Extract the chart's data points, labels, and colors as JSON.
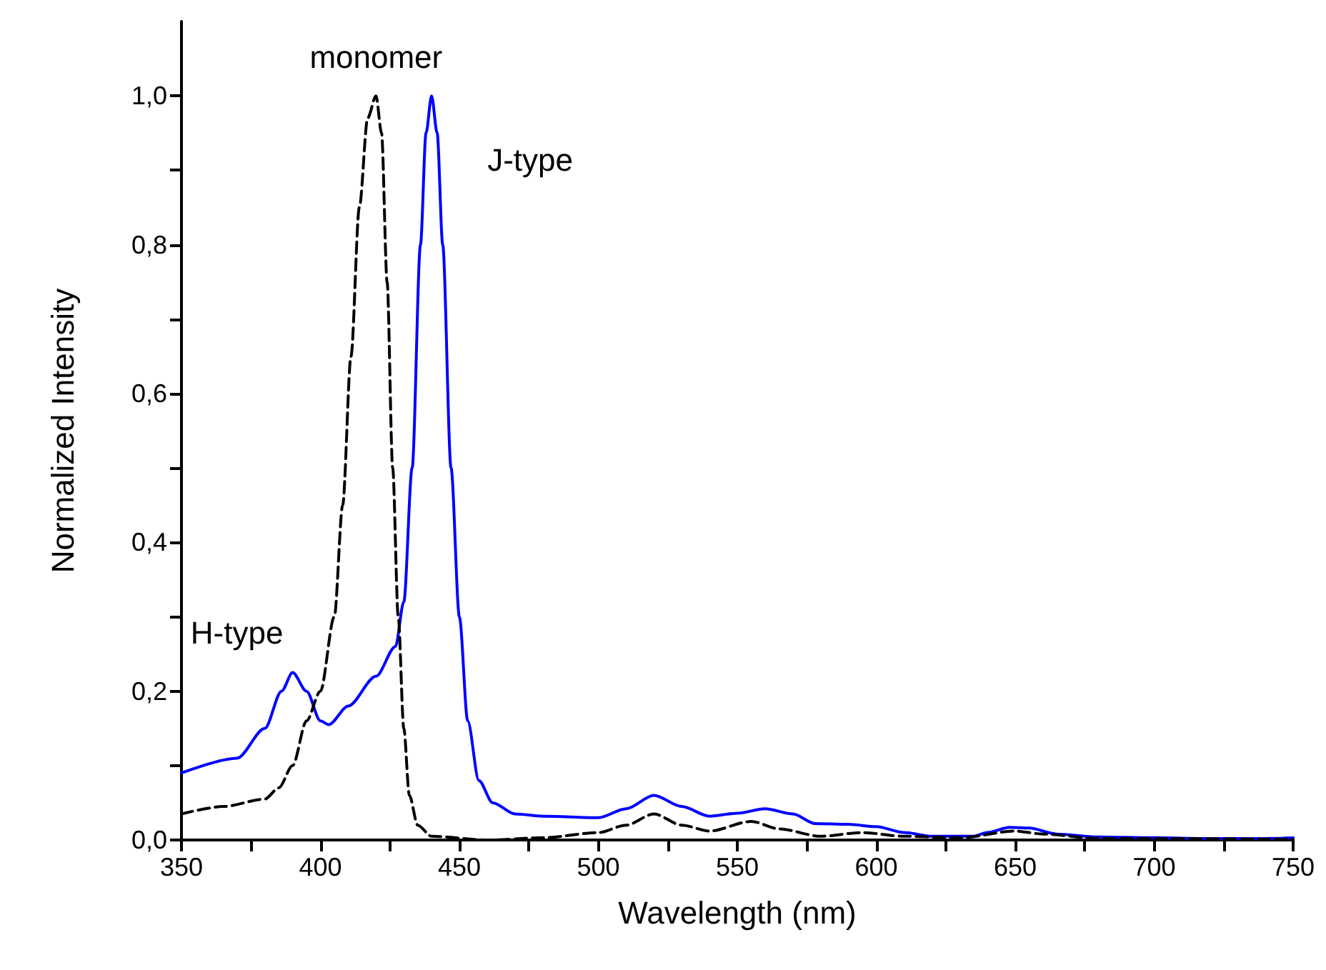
{
  "chart_data": {
    "type": "line",
    "xlabel": "Wavelength (nm)",
    "ylabel": "Normalized Intensity",
    "xlim": [
      350,
      750
    ],
    "ylim": [
      0,
      1.1
    ],
    "xticks": [
      350,
      {
        "value": 375,
        "label": null
      },
      400,
      {
        "value": 425,
        "label": null
      },
      450,
      {
        "value": 475,
        "label": null
      },
      500,
      {
        "value": 525,
        "label": null
      },
      550,
      {
        "value": 575,
        "label": null
      },
      600,
      {
        "value": 625,
        "label": null
      },
      650,
      {
        "value": 675,
        "label": null
      },
      700,
      {
        "value": 725,
        "label": null
      },
      750
    ],
    "yticks": [
      {
        "value": 0,
        "label": "0,0"
      },
      {
        "value": 0.1,
        "label": null
      },
      {
        "value": 0.2,
        "label": "0,2"
      },
      {
        "value": 0.3,
        "label": null
      },
      {
        "value": 0.4,
        "label": "0,4"
      },
      {
        "value": 0.5,
        "label": null
      },
      {
        "value": 0.6,
        "label": "0,6"
      },
      {
        "value": 0.7,
        "label": null
      },
      {
        "value": 0.8,
        "label": "0,8"
      },
      {
        "value": 0.9,
        "label": null
      },
      {
        "value": 1.0,
        "label": "1,0"
      }
    ],
    "grid": false,
    "marker": "none",
    "series": [
      {
        "color": "#0000ff",
        "line_style": "solid",
        "x": [
          350,
          370,
          380,
          386,
          390,
          395,
          400,
          403,
          410,
          420,
          427,
          430,
          433,
          436,
          438,
          440,
          442,
          444,
          447,
          450,
          453,
          457,
          462,
          470,
          480,
          500,
          510,
          520,
          530,
          540,
          550,
          560,
          570,
          578,
          590,
          600,
          610,
          620,
          635,
          640,
          648,
          655,
          665,
          680,
          700,
          720,
          740,
          750
        ],
        "values": [
          0.09,
          0.11,
          0.15,
          0.2,
          0.225,
          0.2,
          0.16,
          0.155,
          0.18,
          0.22,
          0.26,
          0.32,
          0.5,
          0.8,
          0.95,
          1.0,
          0.95,
          0.8,
          0.5,
          0.3,
          0.16,
          0.08,
          0.05,
          0.035,
          0.032,
          0.03,
          0.042,
          0.06,
          0.045,
          0.032,
          0.036,
          0.042,
          0.035,
          0.022,
          0.021,
          0.018,
          0.01,
          0.005,
          0.005,
          0.01,
          0.017,
          0.016,
          0.008,
          0.004,
          0.003,
          0.002,
          0.002,
          0.003
        ]
      },
      {
        "color": "#000000",
        "line_style": "dashed",
        "x": [
          350,
          365,
          380,
          385,
          390,
          395,
          400,
          405,
          408,
          411,
          414,
          417,
          420,
          422,
          424,
          426,
          428,
          430,
          432,
          435,
          440,
          460,
          480,
          500,
          510,
          520,
          530,
          540,
          555,
          565,
          580,
          595,
          610,
          630,
          650,
          660,
          680,
          750
        ],
        "values": [
          0.035,
          0.045,
          0.055,
          0.07,
          0.1,
          0.16,
          0.2,
          0.3,
          0.45,
          0.65,
          0.85,
          0.97,
          1.0,
          0.95,
          0.75,
          0.5,
          0.3,
          0.15,
          0.06,
          0.02,
          0.005,
          0.0,
          0.003,
          0.01,
          0.02,
          0.035,
          0.02,
          0.012,
          0.025,
          0.015,
          0.005,
          0.01,
          0.005,
          0.003,
          0.012,
          0.008,
          0.002,
          0.001
        ]
      }
    ],
    "annotations": [
      {
        "text": "monomer",
        "x": 420,
        "y": 1.0
      },
      {
        "text": "H-type",
        "x": 390,
        "y": 0.225
      },
      {
        "text": "J-type",
        "x": 440,
        "y": 1.0
      }
    ]
  }
}
